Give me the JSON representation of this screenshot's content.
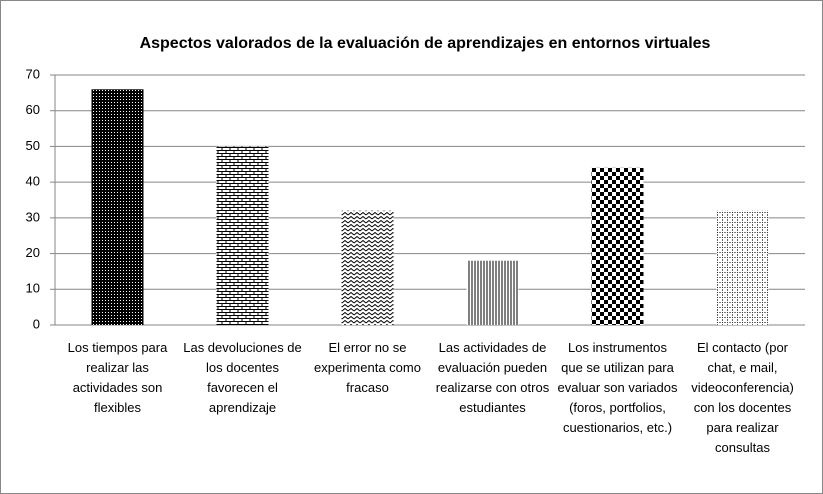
{
  "chart_data": {
    "type": "bar",
    "title": "Aspectos valorados de la evaluación de aprendizajes en entornos virtuales",
    "categories": [
      "Los tiempos para realizar las actividades son flexibles",
      "Las devoluciones de los docentes favorecen el aprendizaje",
      "El error no se experimenta como fracaso",
      "Las actividades de evaluación pueden realizarse con otros estudiantes",
      "Los instrumentos que se utilizan para evaluar son variados (foros, portfolios, cuestionarios, etc.)",
      "El contacto (por chat, e mail, videoconferencia) con los docentes para realizar consultas"
    ],
    "values": [
      66,
      50,
      32,
      18,
      44,
      32
    ],
    "color": "#000000",
    "ylim": [
      0,
      70
    ],
    "yticks": [
      0,
      10,
      20,
      30,
      40,
      50,
      60,
      70
    ],
    "grid": true
  }
}
